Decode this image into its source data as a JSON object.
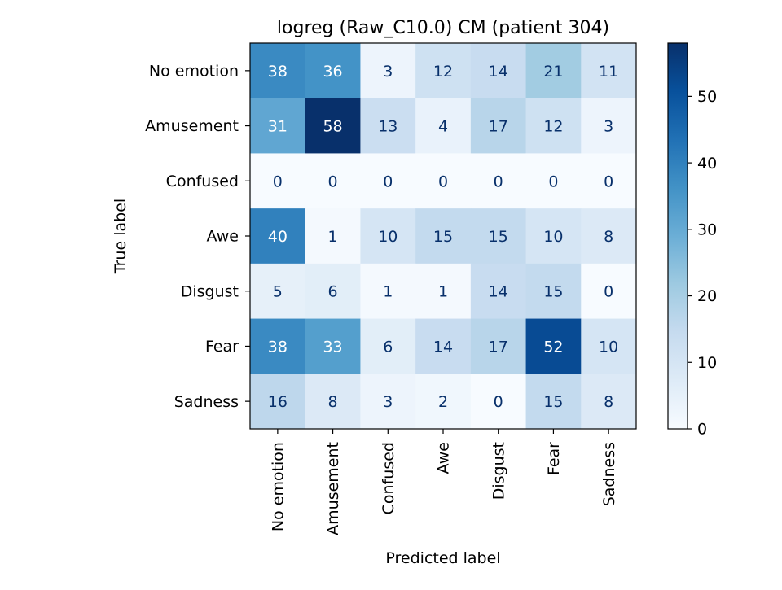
{
  "chart_data": {
    "type": "heatmap",
    "title": "logreg (Raw_C10.0) CM (patient 304)",
    "xlabel": "Predicted label",
    "ylabel": "True label",
    "x_categories": [
      "No emotion",
      "Amusement",
      "Confused",
      "Awe",
      "Disgust",
      "Fear",
      "Sadness"
    ],
    "y_categories": [
      "No emotion",
      "Amusement",
      "Confused",
      "Awe",
      "Disgust",
      "Fear",
      "Sadness"
    ],
    "values": [
      [
        38,
        36,
        3,
        12,
        14,
        21,
        11
      ],
      [
        31,
        58,
        13,
        4,
        17,
        12,
        3
      ],
      [
        0,
        0,
        0,
        0,
        0,
        0,
        0
      ],
      [
        40,
        1,
        10,
        15,
        15,
        10,
        8
      ],
      [
        5,
        6,
        1,
        1,
        14,
        15,
        0
      ],
      [
        38,
        33,
        6,
        14,
        17,
        52,
        10
      ],
      [
        16,
        8,
        3,
        2,
        0,
        15,
        8
      ]
    ],
    "colormap": "Blues",
    "vmin": 0,
    "vmax": 58,
    "colorbar_ticks": [
      0,
      10,
      20,
      30,
      40,
      50
    ]
  }
}
